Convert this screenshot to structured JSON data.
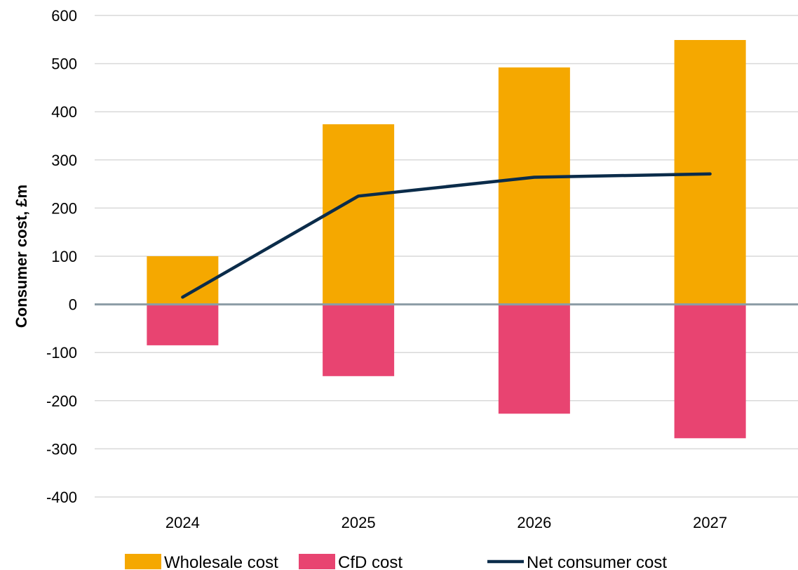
{
  "chart_data": {
    "type": "bar",
    "stacked": true,
    "categories": [
      "2024",
      "2025",
      "2026",
      "2027"
    ],
    "series": [
      {
        "name": "Wholesale cost",
        "kind": "bar",
        "color": "#F5A800",
        "values": [
          100,
          374,
          492,
          549
        ]
      },
      {
        "name": "CfD cost",
        "kind": "bar",
        "color": "#E84471",
        "values": [
          -85,
          -149,
          -227,
          -278
        ]
      },
      {
        "name": "Net consumer cost",
        "kind": "line",
        "color": "#0B2C4A",
        "values": [
          15,
          225,
          264,
          271
        ]
      }
    ],
    "title": "",
    "xlabel": "",
    "ylabel": "Consumer cost, £m",
    "ylim": [
      -400,
      600
    ],
    "yticks": [
      600,
      500,
      400,
      300,
      200,
      100,
      0,
      -100,
      -200,
      -300,
      -400
    ],
    "grid": true,
    "legend_position": "bottom",
    "colors": {
      "grid": "#D9D9D9",
      "zero_line": "#8C9CA6"
    }
  }
}
